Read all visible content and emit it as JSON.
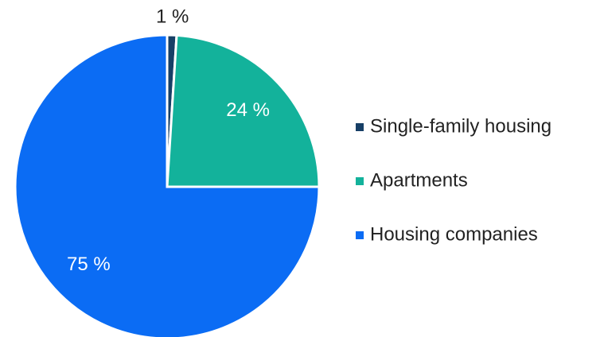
{
  "chart_data": {
    "type": "pie",
    "categories": [
      "Single-family housing",
      "Apartments",
      "Housing companies"
    ],
    "values": [
      1,
      24,
      75
    ],
    "value_labels": [
      "1 %",
      "24 %",
      "75 %"
    ],
    "colors": [
      "#173f66",
      "#13b29b",
      "#0b6cf4"
    ],
    "legend": "right"
  }
}
